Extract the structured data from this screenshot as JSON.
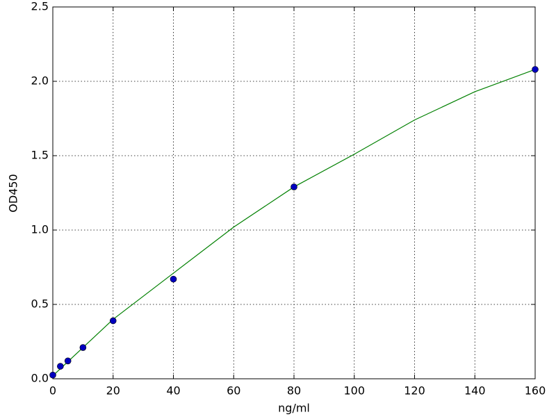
{
  "chart_data": {
    "type": "scatter",
    "xlabel": "ng/ml",
    "ylabel": "OD450",
    "xlim": [
      0,
      160
    ],
    "xticks": [
      0,
      20,
      40,
      60,
      80,
      100,
      120,
      140,
      160
    ],
    "ylim": [
      0,
      2.5
    ],
    "yticks": [
      {
        "value": 0,
        "label": "0.0"
      },
      0.5,
      {
        "value": 1,
        "label": "1.0"
      },
      1.5,
      {
        "value": 2,
        "label": "2.0"
      },
      2.5
    ],
    "grid": true,
    "series": [
      {
        "type": "line",
        "color": "#008000",
        "x": [
          0,
          10,
          20,
          40,
          60,
          80,
          100,
          120,
          140,
          160
        ],
        "values": [
          0.02,
          0.21,
          0.4,
          0.71,
          1.02,
          1.29,
          1.51,
          1.74,
          1.93,
          2.08
        ]
      },
      {
        "type": "scatter",
        "color": "#0000bf",
        "x": [
          0,
          2.5,
          5,
          10,
          20,
          40,
          80,
          160
        ],
        "values": [
          0.025,
          0.084,
          0.12,
          0.21,
          0.39,
          0.67,
          1.29,
          2.08
        ]
      }
    ]
  }
}
